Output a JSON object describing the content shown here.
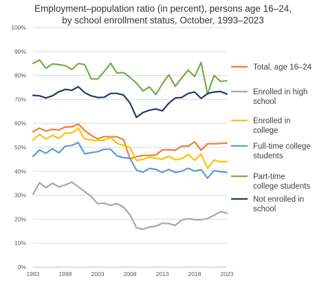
{
  "chart_data": {
    "type": "line",
    "title": "Employment–population ratio (in percent), persons age 16–24,",
    "subtitle": "by school enrollment status, October, 1993–2023",
    "xlabel": "",
    "ylabel": "",
    "x": [
      1993,
      1994,
      1995,
      1996,
      1997,
      1998,
      1999,
      2000,
      2001,
      2002,
      2003,
      2004,
      2005,
      2006,
      2007,
      2008,
      2009,
      2010,
      2011,
      2012,
      2013,
      2014,
      2015,
      2016,
      2017,
      2018,
      2019,
      2020,
      2021,
      2022,
      2023
    ],
    "xticks": [
      1993,
      1998,
      2003,
      2008,
      2013,
      2018,
      2023
    ],
    "ylim": [
      0,
      100
    ],
    "yticks": [
      "0%",
      "10%",
      "20%",
      "30%",
      "40%",
      "50%",
      "60%",
      "70%",
      "80%",
      "90%",
      "100%"
    ],
    "grid": "horizontal",
    "legend": "right",
    "series": [
      {
        "name": "Total, age 16–24",
        "color": "#ED7D31",
        "values": [
          56.5,
          58.0,
          56.8,
          57.5,
          57.2,
          58.5,
          58.5,
          59.7,
          57.0,
          55.0,
          53.5,
          54.5,
          54.4,
          54.4,
          53.2,
          45.2,
          46.1,
          46.6,
          46.6,
          46.8,
          48.9,
          49.0,
          48.8,
          50.5,
          50.5,
          52.3,
          48.8,
          51.5,
          51.5,
          51.6,
          51.8
        ]
      },
      {
        "name": "Enrolled in high school",
        "color": "#A5A5A5",
        "values": [
          30.5,
          35.2,
          33.2,
          35.0,
          33.5,
          34.3,
          35.5,
          33.5,
          31.5,
          29.5,
          26.5,
          26.7,
          25.8,
          26.5,
          25.0,
          21.8,
          16.5,
          15.8,
          16.7,
          17.1,
          18.3,
          18.2,
          17.4,
          19.6,
          20.2,
          19.8,
          19.8,
          20.3,
          21.6,
          23.2,
          22.5
        ]
      },
      {
        "name": "Enrolled in college",
        "color": "#FFC000",
        "values": [
          53.0,
          55.4,
          53.5,
          55.0,
          53.7,
          56.0,
          56.0,
          58.0,
          53.5,
          53.0,
          52.8,
          53.0,
          54.2,
          51.6,
          50.8,
          50.0,
          44.5,
          45.0,
          45.9,
          45.4,
          45.1,
          46.2,
          44.8,
          45.3,
          47.0,
          44.6,
          47.2,
          41.2,
          44.7,
          44.0,
          44.1
        ]
      },
      {
        "name": "Full-time college students",
        "color": "#5B9BD5",
        "values": [
          46.2,
          48.9,
          47.5,
          49.4,
          47.7,
          50.5,
          50.8,
          52.0,
          47.3,
          47.8,
          48.2,
          49.2,
          49.2,
          46.4,
          45.7,
          45.4,
          40.5,
          39.6,
          41.2,
          40.8,
          39.5,
          40.8,
          39.5,
          40.0,
          41.3,
          40.1,
          40.7,
          37.1,
          40.3,
          39.8,
          39.5
        ]
      },
      {
        "name": "Part-time college students",
        "color": "#70AD47",
        "values": [
          85.0,
          86.5,
          83.0,
          84.8,
          84.5,
          84.1,
          82.5,
          85.0,
          84.5,
          78.6,
          78.5,
          81.6,
          85.1,
          81.0,
          81.2,
          79.2,
          76.8,
          73.5,
          75.2,
          72.0,
          76.5,
          80.3,
          75.5,
          79.0,
          82.2,
          79.5,
          85.4,
          72.2,
          80.0,
          77.5,
          77.8
        ]
      },
      {
        "name": "Not enrolled in school",
        "color": "#203864",
        "values": [
          71.7,
          71.5,
          70.6,
          71.5,
          73.2,
          74.2,
          73.8,
          75.3,
          72.8,
          71.5,
          70.8,
          70.9,
          72.5,
          72.5,
          71.8,
          68.5,
          62.5,
          64.5,
          65.5,
          66.0,
          65.2,
          68.4,
          70.6,
          70.8,
          72.5,
          73.1,
          70.4,
          72.4,
          73.1,
          73.3,
          72.2
        ]
      }
    ]
  }
}
